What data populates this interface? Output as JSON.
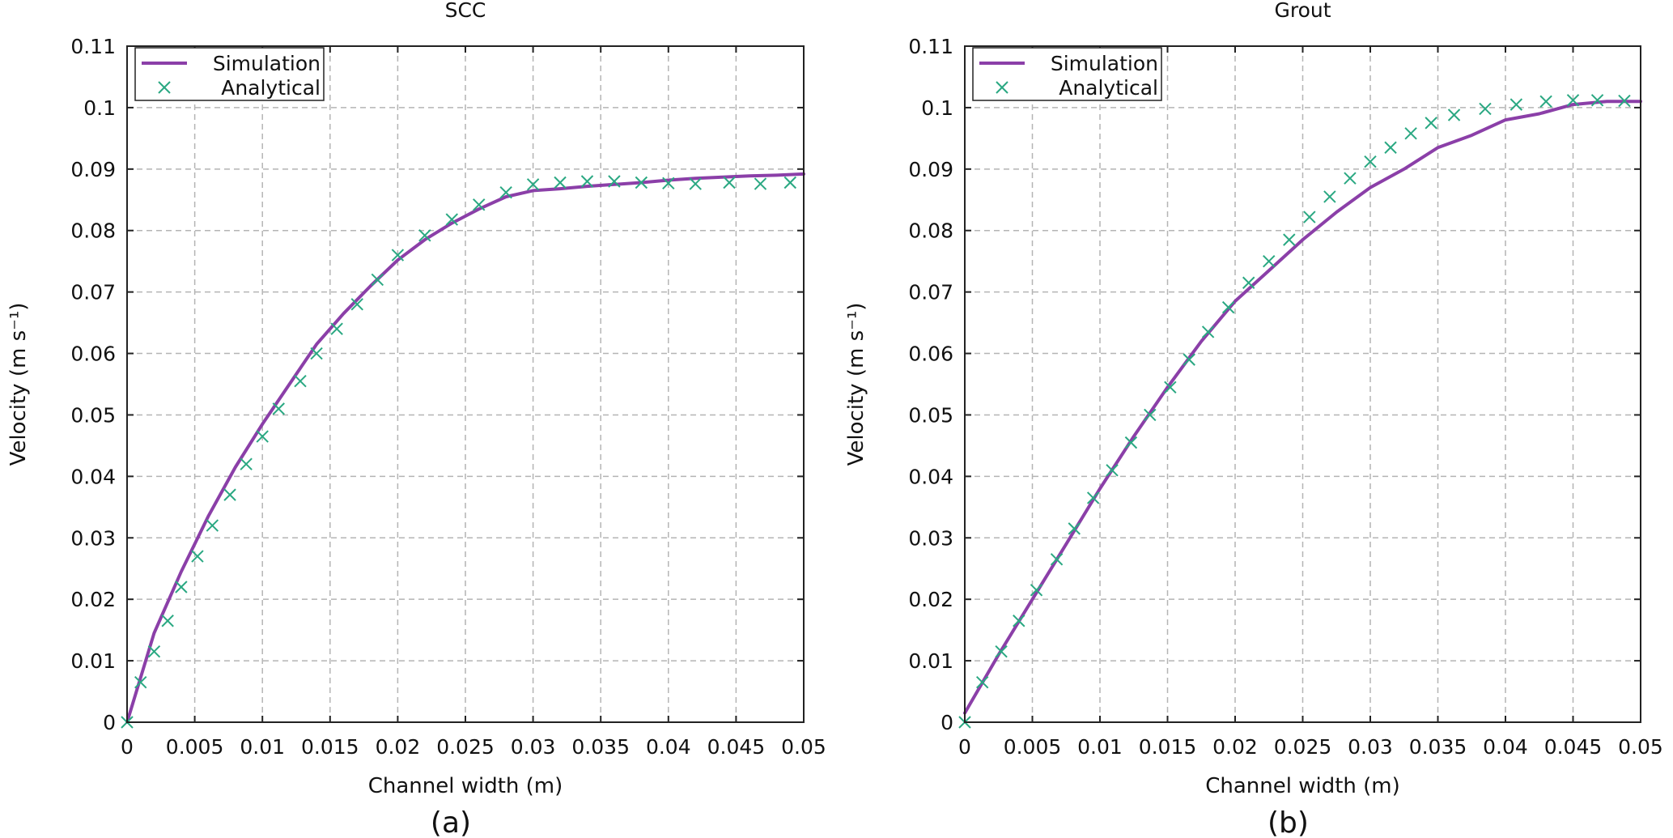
{
  "chart_data": [
    {
      "type": "line",
      "title": "SCC",
      "caption": "(a)",
      "xlabel": "Channel width (m)",
      "ylabel": "Velocity (m s⁻¹)",
      "xlim": [
        0,
        0.05
      ],
      "ylim": [
        0,
        0.11
      ],
      "xticks": [
        "0",
        "0.005",
        "0.01",
        "0.015",
        "0.02",
        "0.025",
        "0.03",
        "0.035",
        "0.04",
        "0.045",
        "0.05"
      ],
      "yticks": [
        "0",
        "0.01",
        "0.02",
        "0.03",
        "0.04",
        "0.05",
        "0.06",
        "0.07",
        "0.08",
        "0.09",
        "0.1",
        "0.11"
      ],
      "grid": true,
      "legend_position": "top-left",
      "series": [
        {
          "name": "Simulation",
          "style": "line",
          "color": "#8b3fa8",
          "x": [
            0,
            0.002,
            0.004,
            0.006,
            0.008,
            0.01,
            0.012,
            0.014,
            0.016,
            0.018,
            0.02,
            0.022,
            0.024,
            0.026,
            0.028,
            0.03,
            0.032,
            0.034,
            0.036,
            0.038,
            0.04,
            0.042,
            0.044,
            0.046,
            0.048,
            0.05
          ],
          "y": [
            0,
            0.0145,
            0.0245,
            0.0335,
            0.0415,
            0.0485,
            0.055,
            0.0615,
            0.0665,
            0.071,
            0.0752,
            0.0785,
            0.0812,
            0.0835,
            0.0855,
            0.0865,
            0.0868,
            0.0872,
            0.0875,
            0.0878,
            0.0882,
            0.0885,
            0.0887,
            0.0889,
            0.089,
            0.0892
          ]
        },
        {
          "name": "Analytical",
          "style": "markers",
          "color": "#2aa882",
          "x": [
            0,
            0.001,
            0.002,
            0.003,
            0.004,
            0.0052,
            0.0063,
            0.0076,
            0.0088,
            0.01,
            0.0112,
            0.0128,
            0.014,
            0.0155,
            0.017,
            0.0185,
            0.02,
            0.022,
            0.024,
            0.026,
            0.028,
            0.03,
            0.032,
            0.034,
            0.036,
            0.038,
            0.04,
            0.042,
            0.0445,
            0.0468,
            0.049
          ],
          "y": [
            0,
            0.0065,
            0.0115,
            0.0165,
            0.022,
            0.027,
            0.032,
            0.037,
            0.042,
            0.0465,
            0.051,
            0.0555,
            0.06,
            0.064,
            0.068,
            0.072,
            0.076,
            0.0792,
            0.0818,
            0.0842,
            0.0862,
            0.0875,
            0.0878,
            0.088,
            0.088,
            0.0878,
            0.0877,
            0.0876,
            0.0878,
            0.0876,
            0.0878
          ]
        }
      ]
    },
    {
      "type": "line",
      "title": "Grout",
      "caption": "(b)",
      "xlabel": "Channel width (m)",
      "ylabel": "Velocity (m s⁻¹)",
      "xlim": [
        0,
        0.05
      ],
      "ylim": [
        0,
        0.11
      ],
      "xticks": [
        "0",
        "0.005",
        "0.01",
        "0.015",
        "0.02",
        "0.025",
        "0.03",
        "0.035",
        "0.04",
        "0.045",
        "0.05"
      ],
      "yticks": [
        "0",
        "0.01",
        "0.02",
        "0.03",
        "0.04",
        "0.05",
        "0.06",
        "0.07",
        "0.08",
        "0.09",
        "0.1",
        "0.11"
      ],
      "grid": true,
      "legend_position": "top-left",
      "series": [
        {
          "name": "Simulation",
          "style": "line",
          "color": "#8b3fa8",
          "x": [
            0,
            0.0025,
            0.005,
            0.0075,
            0.01,
            0.0125,
            0.015,
            0.0175,
            0.02,
            0.0225,
            0.025,
            0.0275,
            0.03,
            0.0325,
            0.035,
            0.0375,
            0.04,
            0.0425,
            0.045,
            0.0475,
            0.05
          ],
          "y": [
            0.0015,
            0.011,
            0.02,
            0.029,
            0.038,
            0.0465,
            0.0545,
            0.062,
            0.0685,
            0.0735,
            0.0785,
            0.083,
            0.087,
            0.09,
            0.0935,
            0.0955,
            0.098,
            0.099,
            0.1005,
            0.101,
            0.101
          ]
        },
        {
          "name": "Analytical",
          "style": "markers",
          "color": "#2aa882",
          "x": [
            0,
            0.0013,
            0.0027,
            0.004,
            0.0053,
            0.0068,
            0.0081,
            0.0095,
            0.0109,
            0.0123,
            0.0137,
            0.0152,
            0.0166,
            0.018,
            0.0195,
            0.021,
            0.0225,
            0.024,
            0.0255,
            0.027,
            0.0285,
            0.03,
            0.0315,
            0.033,
            0.0345,
            0.0362,
            0.0385,
            0.0408,
            0.043,
            0.045,
            0.0468,
            0.0488
          ],
          "y": [
            0,
            0.0065,
            0.0115,
            0.0165,
            0.0215,
            0.0265,
            0.0315,
            0.0365,
            0.041,
            0.0455,
            0.05,
            0.0545,
            0.059,
            0.0635,
            0.0675,
            0.0715,
            0.075,
            0.0785,
            0.0822,
            0.0855,
            0.0885,
            0.0912,
            0.0935,
            0.0958,
            0.0975,
            0.0988,
            0.0998,
            0.1005,
            0.101,
            0.1012,
            0.1012,
            0.1011
          ]
        }
      ]
    }
  ]
}
